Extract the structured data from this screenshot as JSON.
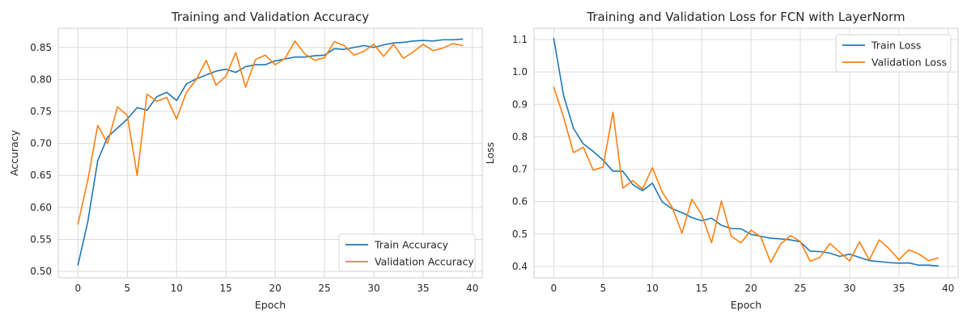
{
  "chart_data": [
    {
      "type": "line",
      "title": "Training and Validation Accuracy",
      "xlabel": "Epoch",
      "ylabel": "Accuracy",
      "xlim": [
        -2,
        41
      ],
      "ylim": [
        0.49,
        0.88
      ],
      "xticks": [
        0,
        5,
        10,
        15,
        20,
        25,
        30,
        35,
        40
      ],
      "yticks": [
        0.5,
        0.55,
        0.6,
        0.65,
        0.7,
        0.75,
        0.8,
        0.85
      ],
      "ytick_decimals": 2,
      "grid": true,
      "legend_position": "bottom-right",
      "x": [
        0,
        1,
        2,
        3,
        4,
        5,
        6,
        7,
        8,
        9,
        10,
        11,
        12,
        13,
        14,
        15,
        16,
        17,
        18,
        19,
        20,
        21,
        22,
        23,
        24,
        25,
        26,
        27,
        28,
        29,
        30,
        31,
        32,
        33,
        34,
        35,
        36,
        37,
        38,
        39
      ],
      "series": [
        {
          "name": "Train Accuracy",
          "color": "#1f77b4",
          "values": [
            0.51,
            0.578,
            0.673,
            0.71,
            0.724,
            0.738,
            0.756,
            0.752,
            0.773,
            0.78,
            0.767,
            0.793,
            0.801,
            0.807,
            0.813,
            0.816,
            0.811,
            0.82,
            0.823,
            0.823,
            0.829,
            0.832,
            0.835,
            0.835,
            0.837,
            0.838,
            0.848,
            0.847,
            0.85,
            0.853,
            0.85,
            0.854,
            0.857,
            0.858,
            0.86,
            0.861,
            0.86,
            0.862,
            0.862,
            0.863
          ]
        },
        {
          "name": "Validation Accuracy",
          "color": "#ff7f0e",
          "values": [
            0.574,
            0.643,
            0.728,
            0.7,
            0.757,
            0.744,
            0.65,
            0.777,
            0.766,
            0.772,
            0.738,
            0.78,
            0.8,
            0.83,
            0.791,
            0.805,
            0.842,
            0.788,
            0.831,
            0.838,
            0.823,
            0.833,
            0.86,
            0.84,
            0.83,
            0.834,
            0.859,
            0.853,
            0.838,
            0.844,
            0.855,
            0.836,
            0.855,
            0.833,
            0.843,
            0.855,
            0.845,
            0.849,
            0.856,
            0.853
          ]
        }
      ]
    },
    {
      "type": "line",
      "title": "Training and Validation Loss for FCN with LayerNorm",
      "xlabel": "Epoch",
      "ylabel": "Loss",
      "xlim": [
        -2,
        41
      ],
      "ylim": [
        0.365,
        1.135
      ],
      "xticks": [
        0,
        5,
        10,
        15,
        20,
        25,
        30,
        35,
        40
      ],
      "yticks": [
        0.4,
        0.5,
        0.6,
        0.7,
        0.8,
        0.9,
        1.0,
        1.1
      ],
      "ytick_decimals": 1,
      "grid": true,
      "legend_position": "top-right",
      "x": [
        0,
        1,
        2,
        3,
        4,
        5,
        6,
        7,
        8,
        9,
        10,
        11,
        12,
        13,
        14,
        15,
        16,
        17,
        18,
        19,
        20,
        21,
        22,
        23,
        24,
        25,
        26,
        27,
        28,
        29,
        30,
        31,
        32,
        33,
        34,
        35,
        36,
        37,
        38,
        39
      ],
      "series": [
        {
          "name": "Train Loss",
          "color": "#1f77b4",
          "values": [
            1.103,
            0.927,
            0.826,
            0.778,
            0.755,
            0.728,
            0.694,
            0.694,
            0.653,
            0.634,
            0.657,
            0.599,
            0.578,
            0.566,
            0.551,
            0.541,
            0.549,
            0.527,
            0.517,
            0.516,
            0.499,
            0.493,
            0.487,
            0.485,
            0.482,
            0.476,
            0.447,
            0.446,
            0.441,
            0.431,
            0.438,
            0.428,
            0.418,
            0.415,
            0.412,
            0.41,
            0.411,
            0.404,
            0.404,
            0.401
          ]
        },
        {
          "name": "Validation Loss",
          "color": "#ff7f0e",
          "values": [
            0.953,
            0.86,
            0.751,
            0.768,
            0.697,
            0.707,
            0.876,
            0.642,
            0.665,
            0.639,
            0.705,
            0.629,
            0.583,
            0.503,
            0.607,
            0.56,
            0.473,
            0.602,
            0.493,
            0.473,
            0.512,
            0.491,
            0.412,
            0.469,
            0.495,
            0.477,
            0.416,
            0.428,
            0.471,
            0.444,
            0.417,
            0.476,
            0.42,
            0.482,
            0.455,
            0.421,
            0.451,
            0.439,
            0.418,
            0.426
          ]
        }
      ]
    }
  ]
}
